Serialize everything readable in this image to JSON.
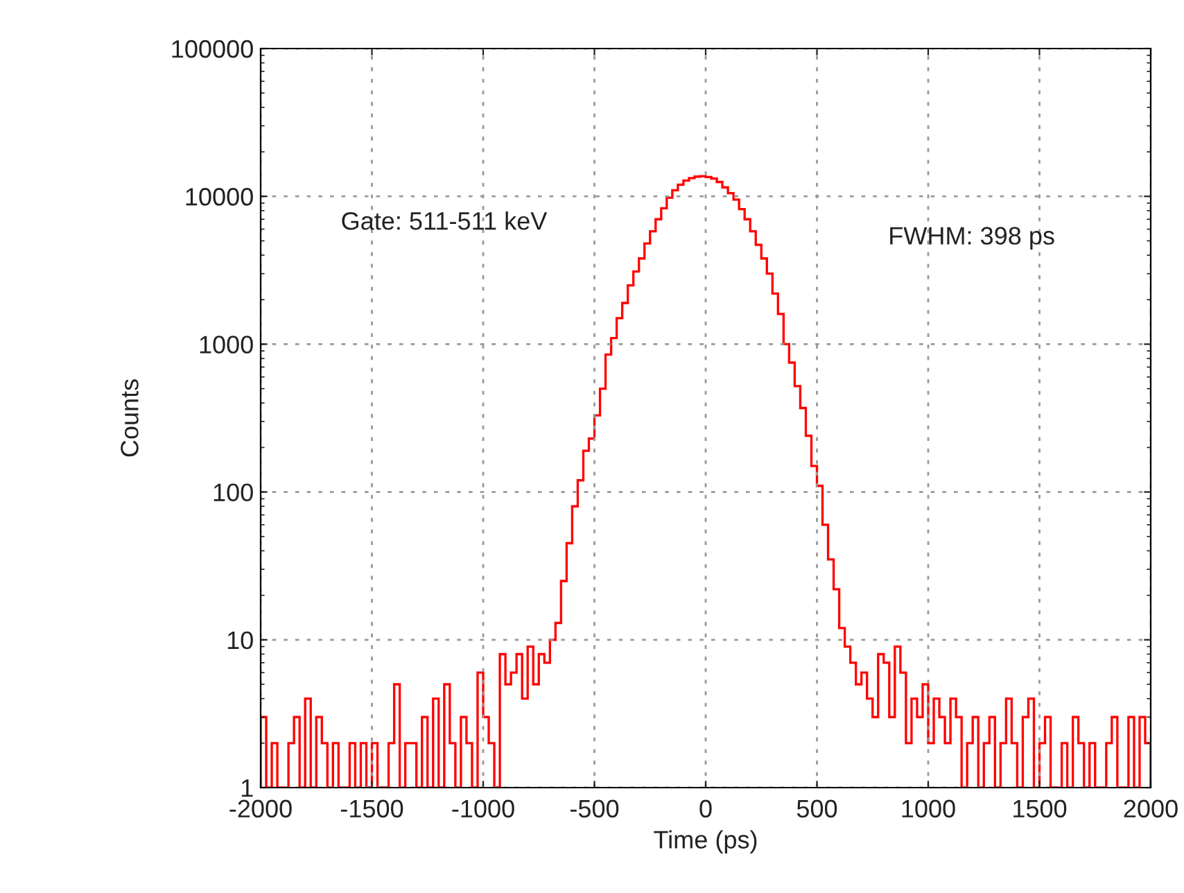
{
  "chart_data": {
    "type": "histogram",
    "xlabel": "Time (ps)",
    "ylabel": "Counts",
    "annotations": [
      "Gate: 511-511 keV",
      "FWHM: 398 ps"
    ],
    "bins": [
      -2000,
      -1975,
      -1950,
      -1925,
      -1900,
      -1875,
      -1850,
      -1825,
      -1800,
      -1775,
      -1750,
      -1725,
      -1700,
      -1675,
      -1650,
      -1625,
      -1600,
      -1575,
      -1550,
      -1525,
      -1500,
      -1475,
      -1450,
      -1425,
      -1400,
      -1375,
      -1350,
      -1325,
      -1300,
      -1275,
      -1250,
      -1225,
      -1200,
      -1175,
      -1150,
      -1125,
      -1100,
      -1075,
      -1050,
      -1025,
      -1000,
      -975,
      -950,
      -925,
      -900,
      -875,
      -850,
      -825,
      -800,
      -775,
      -750,
      -725,
      -700,
      -675,
      -650,
      -625,
      -600,
      -575,
      -550,
      -525,
      -500,
      -475,
      -450,
      -425,
      -400,
      -375,
      -350,
      -325,
      -300,
      -275,
      -250,
      -225,
      -200,
      -175,
      -150,
      -125,
      -100,
      -75,
      -50,
      -25,
      0,
      25,
      50,
      75,
      100,
      125,
      150,
      175,
      200,
      225,
      250,
      275,
      300,
      325,
      350,
      375,
      400,
      425,
      450,
      475,
      500,
      525,
      550,
      575,
      600,
      625,
      650,
      675,
      700,
      725,
      750,
      775,
      800,
      825,
      850,
      875,
      900,
      925,
      950,
      975,
      1000,
      1025,
      1050,
      1075,
      1100,
      1125,
      1150,
      1175,
      1200,
      1225,
      1250,
      1275,
      1300,
      1325,
      1350,
      1375,
      1400,
      1425,
      1450,
      1475,
      1500,
      1525,
      1550,
      1575,
      1600,
      1625,
      1650,
      1675,
      1700,
      1725,
      1750,
      1775,
      1800,
      1825,
      1850,
      1875,
      1900,
      1925,
      1950,
      1975,
      2000
    ],
    "values": [
      3,
      1,
      2,
      1,
      1,
      2,
      3,
      1,
      4,
      1,
      3,
      2,
      1,
      2,
      1,
      1,
      2,
      1,
      2,
      1,
      2,
      1,
      1,
      2,
      5,
      1,
      2,
      2,
      1,
      3,
      1,
      4,
      1,
      5,
      2,
      1,
      3,
      2,
      1,
      6,
      3,
      2,
      1,
      8,
      5,
      6,
      8,
      4,
      9,
      5,
      8,
      7,
      10,
      13,
      25,
      45,
      80,
      120,
      190,
      230,
      330,
      500,
      850,
      1100,
      1500,
      1900,
      2500,
      3100,
      3800,
      4800,
      5800,
      7000,
      8300,
      9800,
      11000,
      12000,
      12800,
      13300,
      13600,
      13700,
      13500,
      13200,
      12500,
      11500,
      10500,
      9500,
      8200,
      7000,
      5800,
      4700,
      3800,
      3000,
      2200,
      1600,
      1000,
      750,
      520,
      370,
      240,
      150,
      110,
      60,
      35,
      22,
      12,
      9,
      7,
      5,
      6,
      4,
      3,
      8,
      7,
      3,
      9,
      6,
      2,
      4,
      3,
      5,
      2,
      4,
      3,
      2,
      4,
      3,
      1,
      2,
      3,
      1,
      2,
      3,
      1,
      2,
      4,
      2,
      1,
      3,
      4,
      1,
      2,
      3,
      1,
      1,
      2,
      1,
      3,
      2,
      1,
      2,
      1,
      1,
      2,
      3,
      1,
      1,
      3,
      1,
      3,
      2
    ],
    "color": "#ff0000",
    "log": "y",
    "xlim": [
      -2000,
      2000
    ],
    "ylim": [
      1,
      100000
    ],
    "xticks": [
      -2000,
      -1500,
      -1000,
      -500,
      0,
      500,
      1000,
      1500,
      2000
    ],
    "yticks": [
      1,
      10,
      100,
      1000,
      10000,
      100000
    ],
    "grid": true
  }
}
